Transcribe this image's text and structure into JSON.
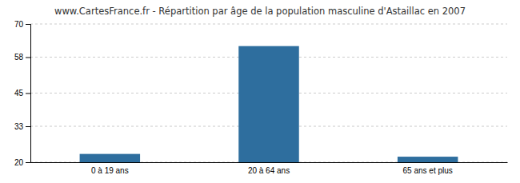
{
  "chart_data": {
    "type": "bar",
    "title": "www.CartesFrance.fr - Répartition par âge de la population masculine d'Astaillac en 2007",
    "categories": [
      "0 à 19 ans",
      "20 à 64 ans",
      "65 ans et plus"
    ],
    "values": [
      23,
      62,
      22
    ],
    "color": "#2e6e9e",
    "ylim": [
      20,
      70
    ],
    "yticks": [
      20,
      33,
      45,
      58,
      70
    ],
    "grid": true
  }
}
